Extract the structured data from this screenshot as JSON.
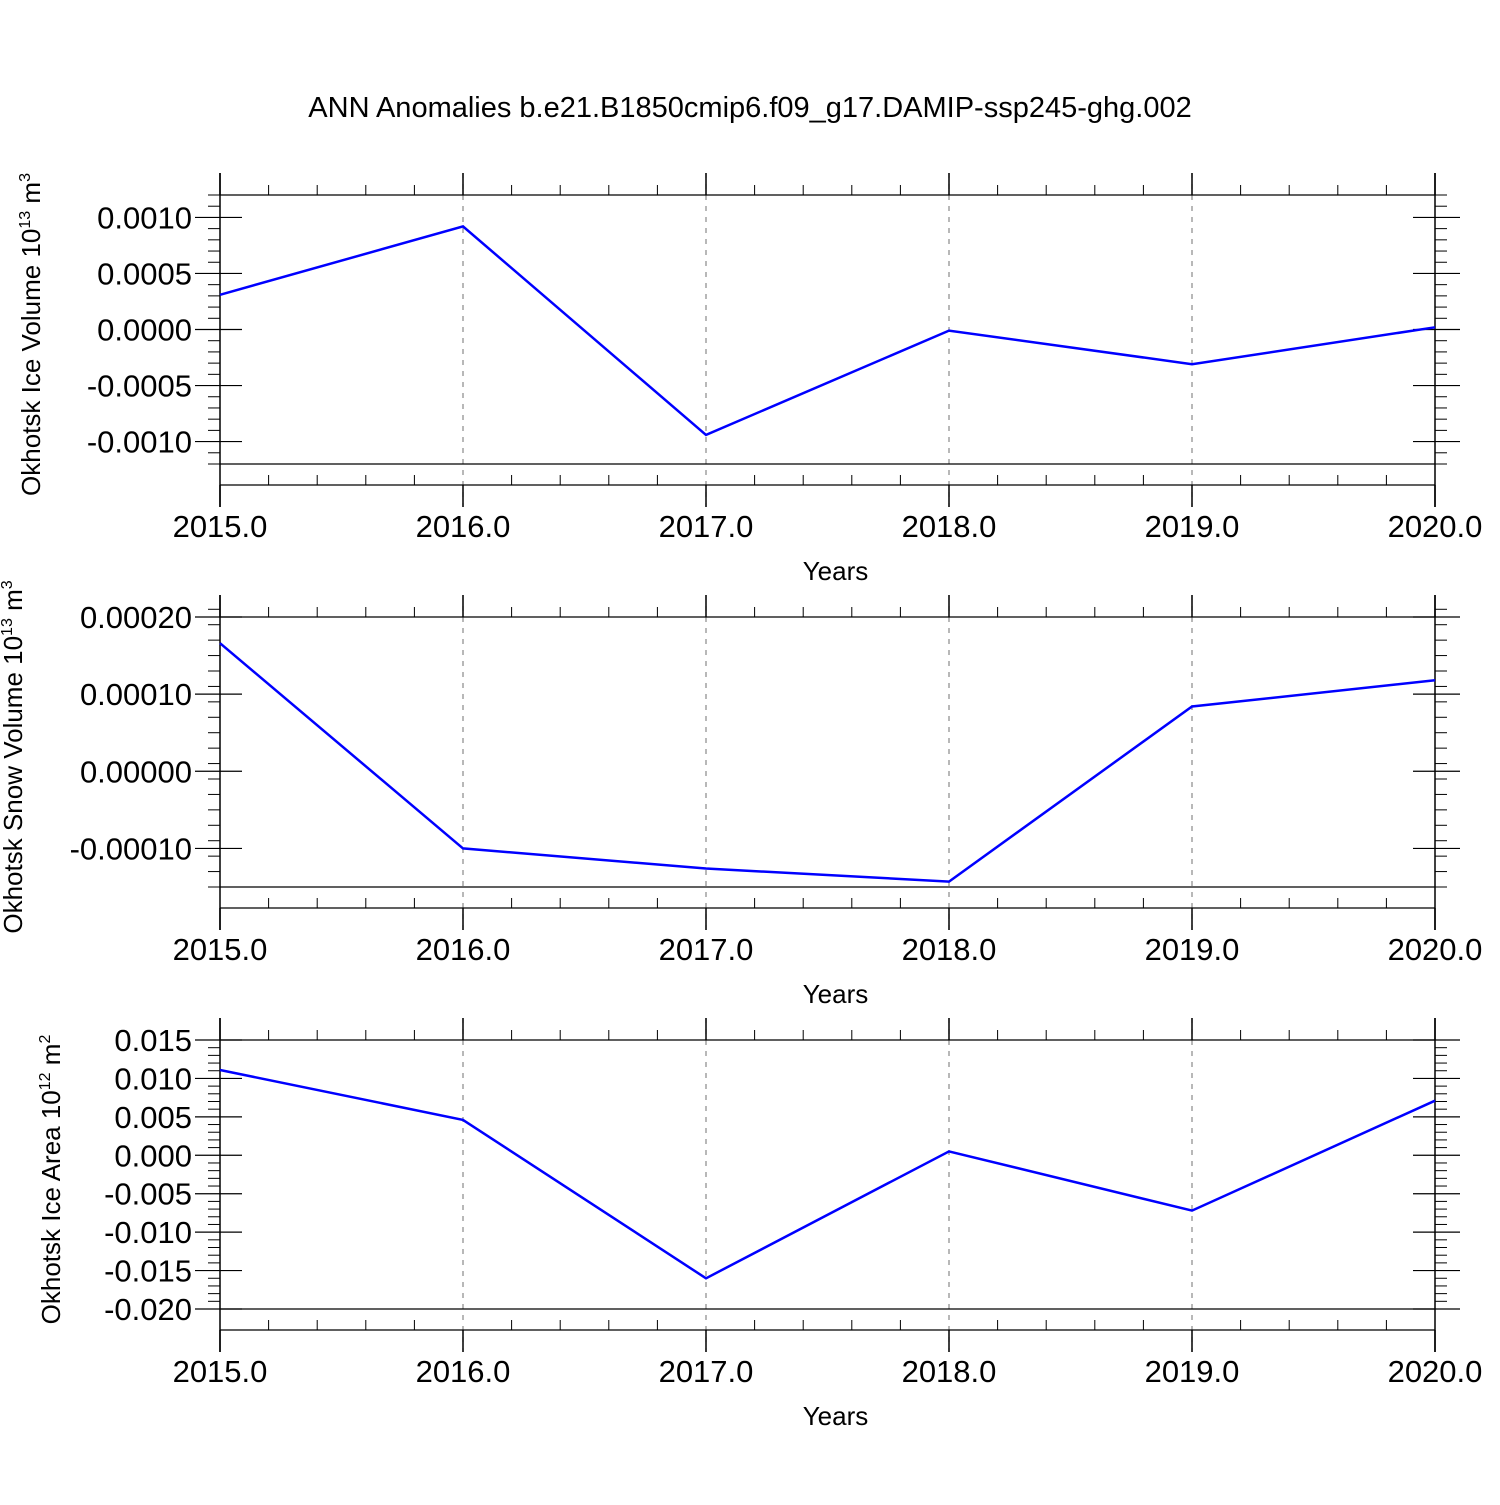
{
  "title": "ANN Anomalies b.e21.B1850cmip6.f09_g17.DAMIP-ssp245-ghg.002",
  "chart_data": [
    {
      "type": "line",
      "title": "",
      "xlabel": "Years",
      "ylabel": {
        "prefix": "Okhotsk Ice Volume 10",
        "exponent": "13",
        "unit": " m",
        "unit_exponent": "3"
      },
      "x": [
        2015,
        2016,
        2017,
        2018,
        2019,
        2020
      ],
      "xticks": [
        "2015.0",
        "2016.0",
        "2017.0",
        "2018.0",
        "2019.0",
        "2020.0"
      ],
      "xlim": [
        2015,
        2020
      ],
      "ylim": [
        -0.0012,
        0.0012
      ],
      "yticks": [
        0.001,
        0.0005,
        0.0,
        -0.0005,
        -0.001
      ],
      "ytick_labels": [
        "0.0010",
        "0.0005",
        "0.0000",
        "-0.0005",
        "-0.0010"
      ],
      "y_minor_step": 0.0001,
      "grid": "vertical dashed at major x ticks",
      "series": [
        {
          "values": [
            0.00031,
            0.00092,
            -0.00094,
            -1e-05,
            -0.00031,
            2e-05
          ],
          "color": "#0000ff"
        }
      ]
    },
    {
      "type": "line",
      "title": "",
      "xlabel": "Years",
      "ylabel": {
        "prefix": "Okhotsk Snow Volume 10",
        "exponent": "13",
        "unit": " m",
        "unit_exponent": "3"
      },
      "x": [
        2015,
        2016,
        2017,
        2018,
        2019,
        2020
      ],
      "xticks": [
        "2015.0",
        "2016.0",
        "2017.0",
        "2018.0",
        "2019.0",
        "2020.0"
      ],
      "xlim": [
        2015,
        2020
      ],
      "ylim": [
        -0.00015,
        0.0002
      ],
      "yticks": [
        0.0002,
        0.0001,
        0.0,
        -0.0001
      ],
      "ytick_labels": [
        "0.00020",
        "0.00010",
        "0.00000",
        "-0.00010"
      ],
      "y_minor_step": 2e-05,
      "grid": "vertical dashed at major x ticks",
      "series": [
        {
          "values": [
            0.000166,
            -0.0001,
            -0.000126,
            -0.000143,
            8.4e-05,
            0.000118
          ],
          "color": "#0000ff"
        }
      ]
    },
    {
      "type": "line",
      "title": "",
      "xlabel": "Years",
      "ylabel": {
        "prefix": "Okhotsk Ice Area 10",
        "exponent": "12",
        "unit": " m",
        "unit_exponent": "2"
      },
      "x": [
        2015,
        2016,
        2017,
        2018,
        2019,
        2020
      ],
      "xticks": [
        "2015.0",
        "2016.0",
        "2017.0",
        "2018.0",
        "2019.0",
        "2020.0"
      ],
      "xlim": [
        2015,
        2020
      ],
      "ylim": [
        -0.02,
        0.015
      ],
      "yticks": [
        0.015,
        0.01,
        0.005,
        0.0,
        -0.005,
        -0.01,
        -0.015,
        -0.02
      ],
      "ytick_labels": [
        "0.015",
        "0.010",
        "0.005",
        "0.000",
        "-0.005",
        "-0.010",
        "-0.015",
        "-0.020"
      ],
      "y_minor_step": 0.001,
      "grid": "vertical dashed at major x ticks",
      "series": [
        {
          "values": [
            0.0111,
            0.0046,
            -0.016,
            0.0005,
            -0.0072,
            0.0071
          ],
          "color": "#0000ff"
        }
      ]
    }
  ]
}
